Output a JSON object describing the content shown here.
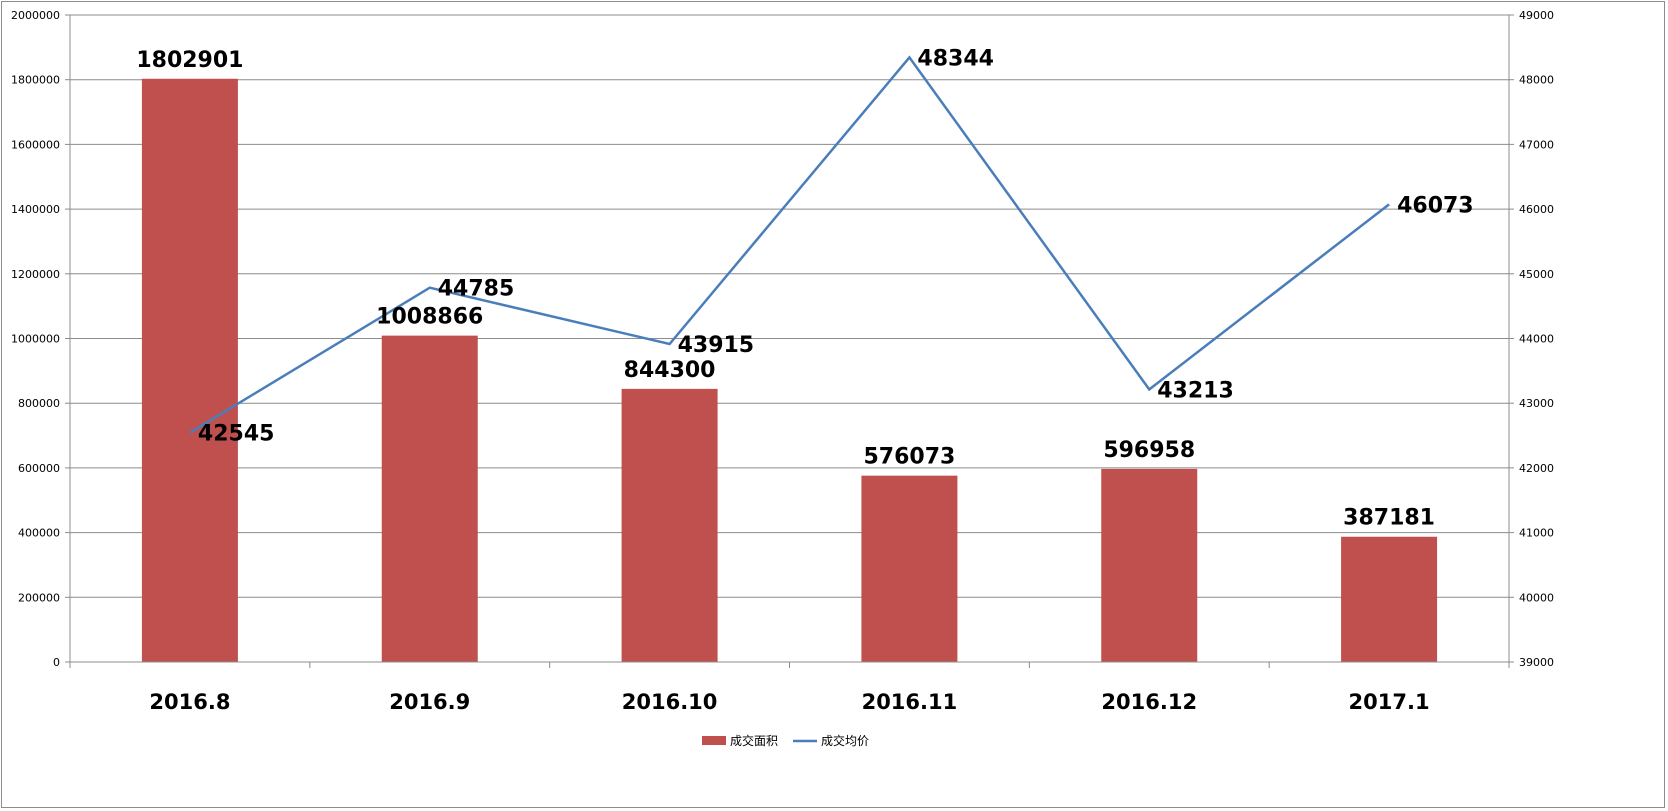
{
  "chart_data": {
    "type": "bar",
    "categories": [
      "2016.8",
      "2016.9",
      "2016.10",
      "2016.11",
      "2016.12",
      "2017.1"
    ],
    "series": [
      {
        "name": "成交面积",
        "type": "bar",
        "axis": "left",
        "color": "#c0504d",
        "values": [
          1802901,
          1008866,
          844300,
          576073,
          596958,
          387181
        ]
      },
      {
        "name": "成交均价",
        "type": "line",
        "axis": "right",
        "color": "#4a7ebb",
        "values": [
          42545,
          44785,
          43915,
          48344,
          43213,
          46073
        ]
      }
    ],
    "y_left": {
      "min": 0,
      "max": 2000000,
      "step": 200000
    },
    "y_right": {
      "min": 39000,
      "max": 49000,
      "step": 1000
    },
    "grid": true,
    "legend": "bottom-center",
    "title": "",
    "xlabel": "",
    "ylabel": ""
  }
}
